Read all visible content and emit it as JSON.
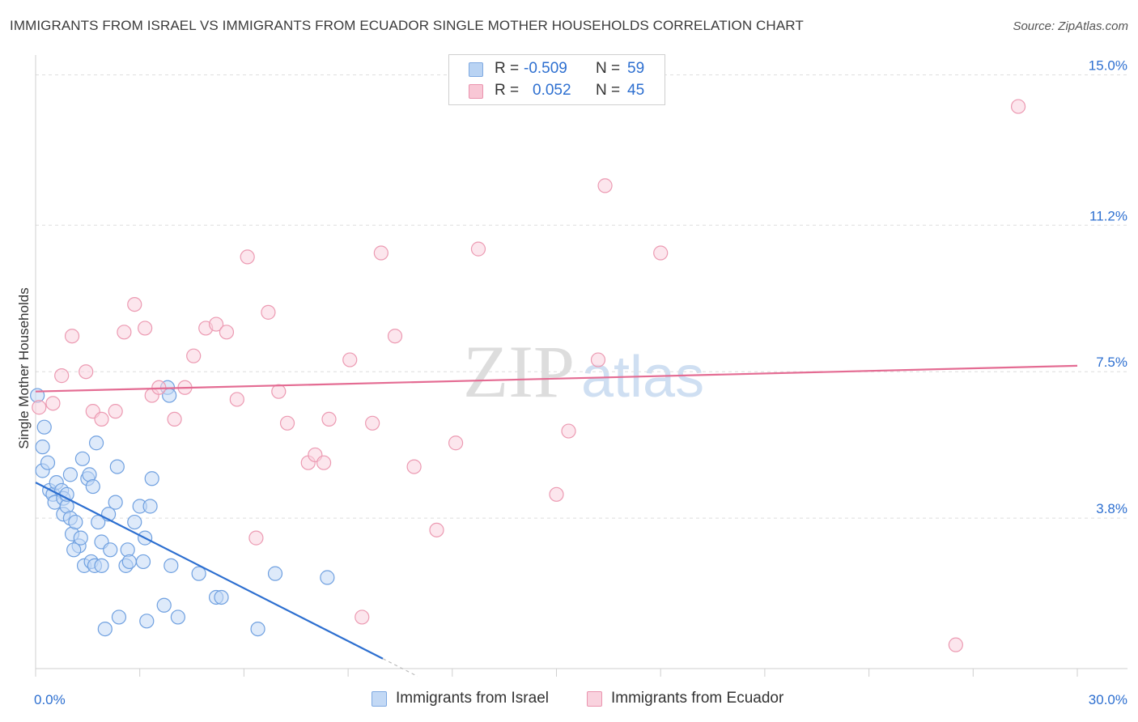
{
  "chart_data": {
    "type": "scatter",
    "title": "IMMIGRANTS FROM ISRAEL VS IMMIGRANTS FROM ECUADOR SINGLE MOTHER HOUSEHOLDS CORRELATION CHART",
    "source": "Source: ZipAtlas.com",
    "ylabel": "Single Mother Households",
    "xlabel": "",
    "xlim": [
      0,
      30
    ],
    "ylim": [
      0,
      15.5
    ],
    "y_ticks": [
      {
        "value": 3.8,
        "label": "3.8%"
      },
      {
        "value": 7.5,
        "label": "7.5%"
      },
      {
        "value": 11.2,
        "label": "11.2%"
      },
      {
        "value": 15.0,
        "label": "15.0%"
      }
    ],
    "x_tick_labels": {
      "left": "0.0%",
      "right": "30.0%"
    },
    "grid": "horizontal dashed",
    "watermark": {
      "part1": "ZIP",
      "part2": "atlas"
    },
    "legend_position": "top-center",
    "series": [
      {
        "name": "Immigrants from Israel",
        "color": "#6fa0e0",
        "fill": "#c3d9f5",
        "line_color": "#2d6fd0",
        "R": "-0.509",
        "N": "59",
        "trend": {
          "x0": 0,
          "y0": 4.7,
          "x1": 10.0,
          "y1": 0.25,
          "dash_to_x": 11.0
        },
        "points": [
          [
            0.05,
            6.9
          ],
          [
            0.2,
            5.6
          ],
          [
            0.25,
            6.1
          ],
          [
            0.2,
            5.0
          ],
          [
            0.35,
            5.2
          ],
          [
            0.4,
            4.5
          ],
          [
            0.5,
            4.4
          ],
          [
            0.55,
            4.2
          ],
          [
            0.6,
            4.7
          ],
          [
            0.75,
            4.5
          ],
          [
            0.8,
            4.3
          ],
          [
            0.8,
            3.9
          ],
          [
            0.9,
            4.1
          ],
          [
            1.0,
            4.9
          ],
          [
            1.0,
            3.8
          ],
          [
            1.05,
            3.4
          ],
          [
            1.15,
            3.7
          ],
          [
            1.25,
            3.1
          ],
          [
            1.3,
            3.3
          ],
          [
            1.35,
            5.3
          ],
          [
            1.4,
            2.6
          ],
          [
            1.5,
            4.8
          ],
          [
            1.55,
            4.9
          ],
          [
            1.6,
            2.7
          ],
          [
            1.65,
            4.6
          ],
          [
            1.7,
            2.6
          ],
          [
            1.75,
            5.7
          ],
          [
            1.8,
            3.7
          ],
          [
            1.9,
            3.2
          ],
          [
            1.9,
            2.6
          ],
          [
            2.1,
            3.9
          ],
          [
            2.15,
            3.0
          ],
          [
            2.3,
            4.2
          ],
          [
            2.35,
            5.1
          ],
          [
            2.4,
            1.3
          ],
          [
            2.6,
            2.6
          ],
          [
            2.65,
            3.0
          ],
          [
            2.7,
            2.7
          ],
          [
            2.85,
            3.7
          ],
          [
            3.0,
            4.1
          ],
          [
            3.15,
            3.3
          ],
          [
            3.2,
            1.2
          ],
          [
            3.3,
            4.1
          ],
          [
            3.35,
            4.8
          ],
          [
            3.7,
            1.6
          ],
          [
            3.8,
            7.1
          ],
          [
            3.85,
            6.9
          ],
          [
            3.9,
            2.6
          ],
          [
            4.1,
            1.3
          ],
          [
            4.7,
            2.4
          ],
          [
            5.2,
            1.8
          ],
          [
            5.35,
            1.8
          ],
          [
            6.4,
            1.0
          ],
          [
            6.9,
            2.4
          ],
          [
            8.4,
            2.3
          ],
          [
            2.0,
            1.0
          ],
          [
            3.1,
            2.7
          ],
          [
            1.1,
            3.0
          ],
          [
            0.9,
            4.4
          ]
        ]
      },
      {
        "name": "Immigrants from Ecuador",
        "color": "#ec9ab2",
        "fill": "#f9d2de",
        "line_color": "#e46c93",
        "R": "0.052",
        "N": "45",
        "trend": {
          "x0": 0,
          "y0": 7.0,
          "x1": 30,
          "y1": 7.65
        },
        "points": [
          [
            0.1,
            6.6
          ],
          [
            0.5,
            6.7
          ],
          [
            0.75,
            7.4
          ],
          [
            1.05,
            8.4
          ],
          [
            1.45,
            7.5
          ],
          [
            1.65,
            6.5
          ],
          [
            1.9,
            6.3
          ],
          [
            2.3,
            6.5
          ],
          [
            2.55,
            8.5
          ],
          [
            2.85,
            9.2
          ],
          [
            3.15,
            8.6
          ],
          [
            3.35,
            6.9
          ],
          [
            3.55,
            7.1
          ],
          [
            4.0,
            6.3
          ],
          [
            4.3,
            7.1
          ],
          [
            4.55,
            7.9
          ],
          [
            4.9,
            8.6
          ],
          [
            5.2,
            8.7
          ],
          [
            5.5,
            8.5
          ],
          [
            5.8,
            6.8
          ],
          [
            6.1,
            10.4
          ],
          [
            6.35,
            3.3
          ],
          [
            6.7,
            9.0
          ],
          [
            7.0,
            7.0
          ],
          [
            7.25,
            6.2
          ],
          [
            7.85,
            5.2
          ],
          [
            8.05,
            5.4
          ],
          [
            8.3,
            5.2
          ],
          [
            8.45,
            6.3
          ],
          [
            9.05,
            7.8
          ],
          [
            9.4,
            1.3
          ],
          [
            9.7,
            6.2
          ],
          [
            9.95,
            10.5
          ],
          [
            10.35,
            8.4
          ],
          [
            10.9,
            5.1
          ],
          [
            11.55,
            3.5
          ],
          [
            12.1,
            5.7
          ],
          [
            12.75,
            10.6
          ],
          [
            15.0,
            4.4
          ],
          [
            15.35,
            6.0
          ],
          [
            16.2,
            7.8
          ],
          [
            16.4,
            12.2
          ],
          [
            18.0,
            10.5
          ],
          [
            26.5,
            0.6
          ],
          [
            28.3,
            14.2
          ]
        ]
      }
    ]
  }
}
